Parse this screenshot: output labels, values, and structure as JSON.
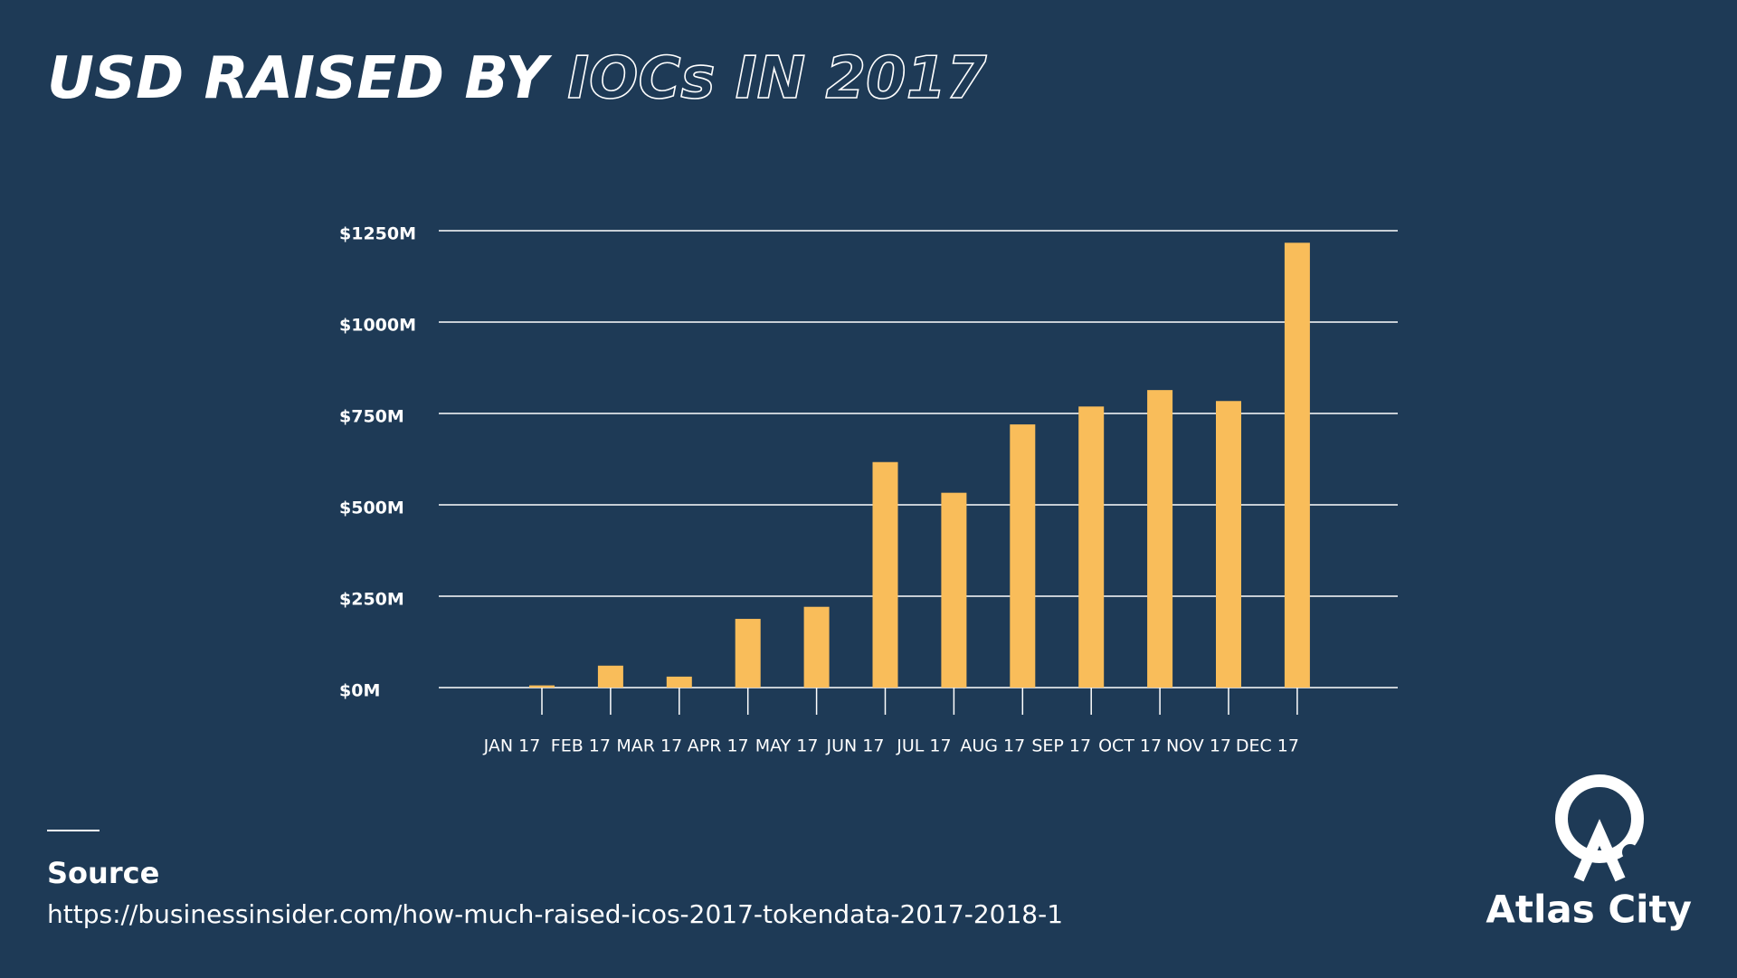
{
  "chart_data": {
    "type": "bar",
    "title": "USD RAISED BY",
    "title_highlight": "IOCs IN 2017",
    "categories": [
      "JAN 17",
      "FEB 17",
      "MAR 17",
      "APR 17",
      "MAY 17",
      "JUN 17",
      "JUL 17",
      "AUG 17",
      "SEP 17",
      "OCT 17",
      "NOV 17",
      "DEC 17"
    ],
    "values": [
      6,
      60,
      30,
      188,
      221,
      617,
      533,
      720,
      769,
      814,
      784,
      1217
    ],
    "color": "#f9bd5a",
    "ylim": [
      0,
      1250
    ],
    "yticks": [
      {
        "value": 0,
        "label": "$0M"
      },
      {
        "value": 250,
        "label": "$250M"
      },
      {
        "value": 500,
        "label": "$500M"
      },
      {
        "value": 750,
        "label": "$750M"
      },
      {
        "value": 1000,
        "label": "$1000M"
      },
      {
        "value": 1250,
        "label": "$1250M"
      }
    ],
    "grid": true
  },
  "footer": {
    "source_label": "Source",
    "source_url": "https://businessinsider.com/how-much-raised-icos-2017-tokendata-2017-2018-1",
    "brand": "Atlas City"
  }
}
